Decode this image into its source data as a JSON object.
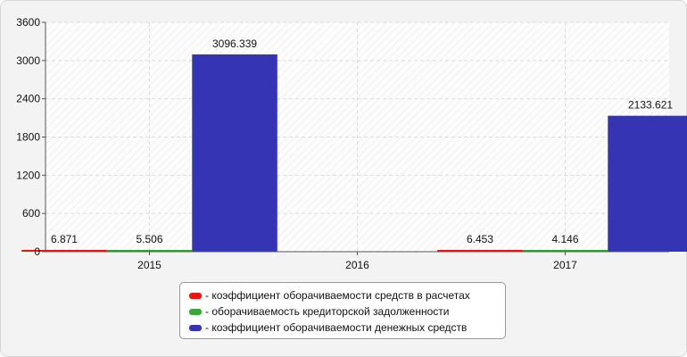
{
  "chart_data": {
    "type": "bar",
    "categories": [
      "2015",
      "2016",
      "2017"
    ],
    "series": [
      {
        "name": "коэффициент оборачиваемости средств в расчетах",
        "color": "#ee1111",
        "values": [
          6.871,
          null,
          6.453
        ],
        "labels": [
          "6.871",
          "",
          "6.453"
        ]
      },
      {
        "name": "оборачиваемость кредиторской задолженности",
        "color": "#33aa33",
        "values": [
          5.506,
          null,
          4.146
        ],
        "labels": [
          "5.506",
          "",
          "4.146"
        ]
      },
      {
        "name": "коэффициент оборачиваемости денежных средств",
        "color": "#3434b4",
        "values": [
          3096.339,
          null,
          2133.621
        ],
        "labels": [
          "3096.339",
          "",
          "2133.621"
        ]
      }
    ],
    "ylim": [
      0,
      3600
    ],
    "yticks": [
      "0",
      "600",
      "1200",
      "1800",
      "2400",
      "3000",
      "3600"
    ],
    "grid": true,
    "legend_position": "bottom-center"
  },
  "legend": {
    "prefix": "- ",
    "items": [
      "коэффициент оборачиваемости средств в расчетах",
      "оборачиваемость кредиторской задолженности",
      "коэффициент оборачиваемости денежных средств"
    ]
  }
}
